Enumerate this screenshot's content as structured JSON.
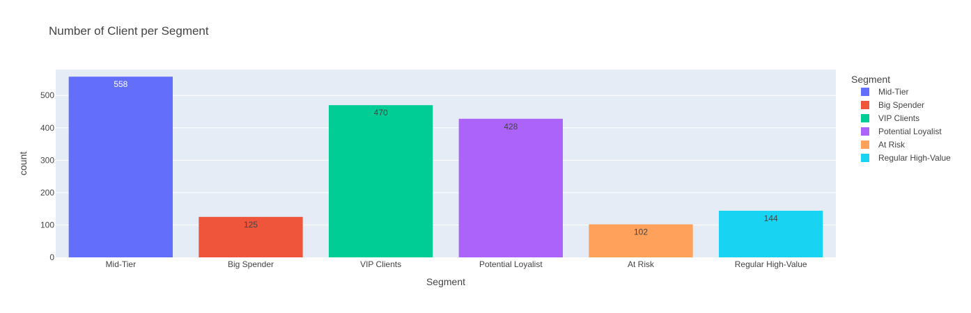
{
  "chart_data": {
    "type": "bar",
    "title": "Number of Client per Segment",
    "xlabel": "Segment",
    "ylabel": "count",
    "ylim": [
      0,
      580
    ],
    "yticks": [
      0,
      100,
      200,
      300,
      400,
      500
    ],
    "grid": true,
    "legend_title": "Segment",
    "legend_position": "right",
    "categories": [
      "Mid-Tier",
      "Big Spender",
      "VIP Clients",
      "Potential Loyalist",
      "At Risk",
      "Regular High-Value"
    ],
    "series": [
      {
        "name": "Mid-Tier",
        "category": "Mid-Tier",
        "value": 558,
        "label": "558",
        "color": "#636efa",
        "label_color": "#ffffff"
      },
      {
        "name": "Big Spender",
        "category": "Big Spender",
        "value": 125,
        "label": "125",
        "color": "#ef553b",
        "label_color": "#444444"
      },
      {
        "name": "VIP Clients",
        "category": "VIP Clients",
        "value": 470,
        "label": "470",
        "color": "#00cc96",
        "label_color": "#444444"
      },
      {
        "name": "Potential Loyalist",
        "category": "Potential Loyalist",
        "value": 428,
        "label": "428",
        "color": "#ab63fa",
        "label_color": "#444444"
      },
      {
        "name": "At Risk",
        "category": "At Risk",
        "value": 102,
        "label": "102",
        "color": "#ffa15a",
        "label_color": "#444444"
      },
      {
        "name": "Regular High-Value",
        "category": "Regular High-Value",
        "value": 144,
        "label": "144",
        "color": "#19d3f3",
        "label_color": "#444444"
      }
    ],
    "colors": {
      "plot_background": "#e5ecf6",
      "gridline": "#ffffff",
      "text": "#444444"
    }
  }
}
